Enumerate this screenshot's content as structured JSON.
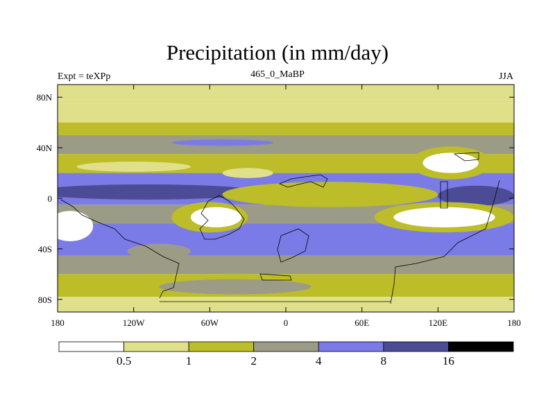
{
  "header": {
    "title": "Precipitation (in mm/day)",
    "experiment": "Expt = teXPp",
    "age": "465_0_MaBP",
    "season": "JJA"
  },
  "chart_data": {
    "type": "heatmap",
    "title": "Precipitation (in mm/day)",
    "subtitle_left": "Expt = teXPp",
    "subtitle_center": "465_0_MaBP",
    "subtitle_right": "JJA",
    "x_axis": {
      "range": [
        -180,
        180
      ],
      "ticks": [
        -180,
        -120,
        -60,
        0,
        60,
        120,
        180
      ],
      "tick_labels": [
        "180",
        "120W",
        "60W",
        "0",
        "60E",
        "120E",
        "180"
      ]
    },
    "y_axis": {
      "range": [
        -90,
        90
      ],
      "ticks": [
        80,
        40,
        0,
        -40,
        -80
      ],
      "tick_labels": [
        "80N",
        "40N",
        "0",
        "40S",
        "80S"
      ]
    },
    "colorbar": {
      "levels": [
        0.5,
        1,
        2,
        4,
        8,
        16
      ],
      "level_labels": [
        "0.5",
        "1",
        "2",
        "4",
        "8",
        "16"
      ],
      "colors": [
        "#ffffff",
        "#e0e08a",
        "#bdbd2a",
        "#9b9b86",
        "#7b7be8",
        "#4c4c96",
        "#000000"
      ]
    },
    "bands": [
      {
        "lat": [
          75,
          90
        ],
        "bin": 1
      },
      {
        "lat": [
          60,
          75
        ],
        "bin": 1
      },
      {
        "lat": [
          50,
          60
        ],
        "bin": 2
      },
      {
        "lat": [
          35,
          50
        ],
        "bin": 3
      },
      {
        "lat": [
          20,
          35
        ],
        "bin": 2
      },
      {
        "lat": [
          -5,
          20
        ],
        "bin": 4
      },
      {
        "lat": [
          -20,
          -5
        ],
        "bin": 3
      },
      {
        "lat": [
          -45,
          -20
        ],
        "bin": 4
      },
      {
        "lat": [
          -60,
          -45
        ],
        "bin": 3
      },
      {
        "lat": [
          -78,
          -60
        ],
        "bin": 2
      },
      {
        "lat": [
          -90,
          -78
        ],
        "bin": 1
      }
    ],
    "blobs": [
      {
        "lon": -50,
        "lat": 44,
        "rx": 40,
        "ry": 2.5,
        "bin": 4
      },
      {
        "lon": -120,
        "lat": 25,
        "rx": 45,
        "ry": 4,
        "bin": 1
      },
      {
        "lon": -30,
        "lat": 20,
        "rx": 20,
        "ry": 4,
        "bin": 1
      },
      {
        "lon": -110,
        "lat": 5,
        "rx": 90,
        "ry": 6,
        "bin": 5
      },
      {
        "lon": 40,
        "lat": 5,
        "rx": 75,
        "ry": 7,
        "bin": 0
      },
      {
        "lon": 35,
        "lat": 3,
        "rx": 85,
        "ry": 10,
        "bin": 2
      },
      {
        "lon": 130,
        "lat": 28,
        "rx": 32,
        "ry": 13,
        "bin": 2
      },
      {
        "lon": 130,
        "lat": 28,
        "rx": 22,
        "ry": 8,
        "bin": 0
      },
      {
        "lon": 150,
        "lat": 2,
        "rx": 30,
        "ry": 8,
        "bin": 5
      },
      {
        "lon": 125,
        "lat": -15,
        "rx": 55,
        "ry": 12,
        "bin": 2
      },
      {
        "lon": 125,
        "lat": -15,
        "rx": 40,
        "ry": 8,
        "bin": 0
      },
      {
        "lon": -60,
        "lat": -15,
        "rx": 30,
        "ry": 12,
        "bin": 2
      },
      {
        "lon": -55,
        "lat": -15,
        "rx": 20,
        "ry": 8,
        "bin": 0
      },
      {
        "lon": -170,
        "lat": -22,
        "rx": 18,
        "ry": 12,
        "bin": 0
      },
      {
        "lon": -40,
        "lat": -70,
        "rx": 60,
        "ry": 6,
        "bin": 3
      },
      {
        "lon": -100,
        "lat": -42,
        "rx": 25,
        "ry": 6,
        "bin": 3
      }
    ]
  }
}
